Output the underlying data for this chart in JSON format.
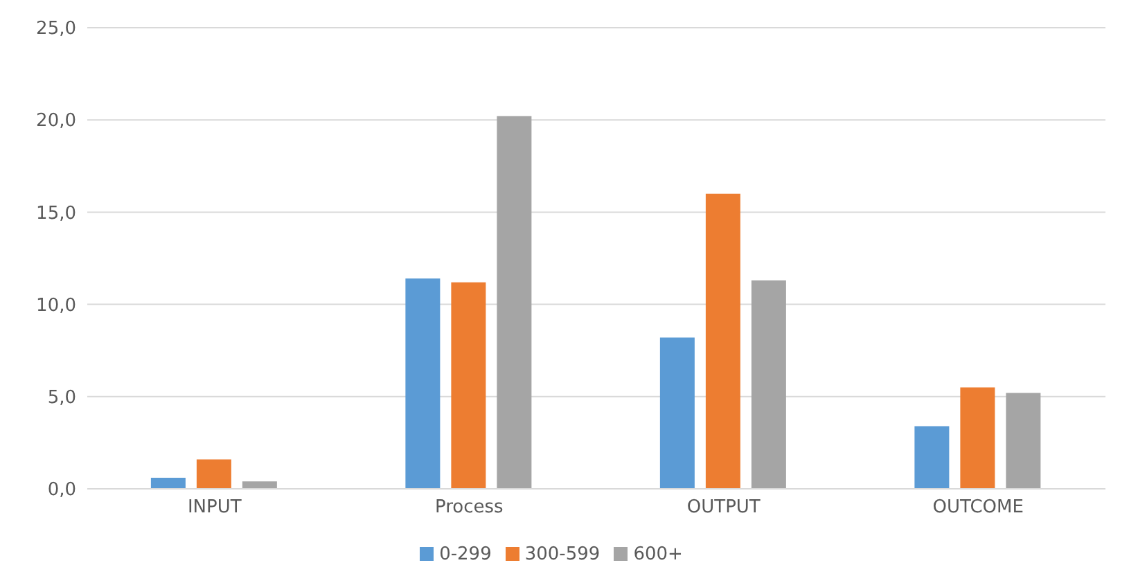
{
  "chart_data": {
    "type": "bar",
    "categories": [
      "INPUT",
      "Process",
      "OUTPUT",
      "OUTCOME"
    ],
    "series": [
      {
        "name": "0-299",
        "color": "#5b9bd5",
        "values": [
          0.6,
          11.4,
          8.2,
          3.4
        ]
      },
      {
        "name": "300-599",
        "color": "#ed7d31",
        "values": [
          1.6,
          11.2,
          16.0,
          5.5
        ]
      },
      {
        "name": "600+",
        "color": "#a5a5a5",
        "values": [
          0.4,
          20.2,
          11.3,
          5.2
        ]
      }
    ],
    "ylim": [
      0,
      25
    ],
    "yticks": [
      {
        "value": 0,
        "label": "0,0"
      },
      {
        "value": 5,
        "label": "5,0"
      },
      {
        "value": 10,
        "label": "10,0"
      },
      {
        "value": 15,
        "label": "15,0"
      },
      {
        "value": 20,
        "label": "20,0"
      },
      {
        "value": 25,
        "label": "25,0"
      }
    ],
    "grid": "y",
    "legend": "bottom"
  }
}
